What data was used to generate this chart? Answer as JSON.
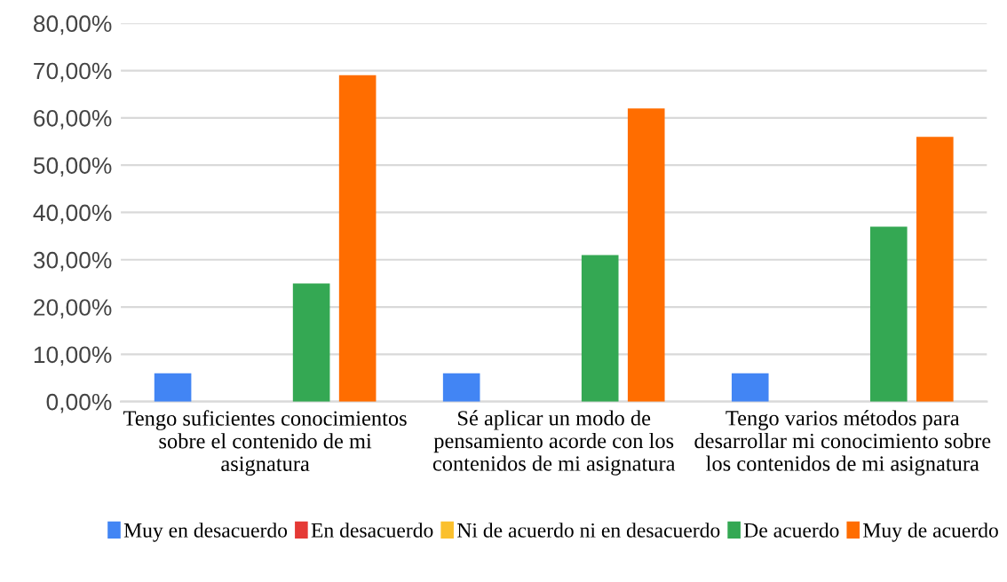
{
  "chart_data": {
    "type": "bar",
    "categories": [
      "Tengo suficientes conocimientos\nsobre el contenido de mi\nasignatura",
      "Sé aplicar un modo de\npensamiento acorde con los\ncontenidos de mi asignatura",
      "Tengo varios métodos para\ndesarrollar mi conocimiento sobre\nlos contenidos de mi asignatura"
    ],
    "series": [
      {
        "name": "Muy en desacuerdo",
        "color": "#4285f4",
        "values": [
          6,
          6,
          6
        ]
      },
      {
        "name": "En desacuerdo",
        "color": "#e53935",
        "values": [
          0,
          0,
          0
        ]
      },
      {
        "name": "Ni de acuerdo ni en desacuerdo",
        "color": "#fbc02d",
        "values": [
          0,
          0,
          0
        ]
      },
      {
        "name": "De acuerdo",
        "color": "#34a853",
        "values": [
          25,
          31,
          37
        ]
      },
      {
        "name": "Muy de acuerdo",
        "color": "#ff6d00",
        "values": [
          69,
          62,
          56
        ]
      }
    ],
    "ylim": [
      0,
      80
    ],
    "yticks": [
      {
        "value": 0,
        "label": "0,00%"
      },
      {
        "value": 10,
        "label": "10,00%"
      },
      {
        "value": 20,
        "label": "20,00%"
      },
      {
        "value": 30,
        "label": "30,00%"
      },
      {
        "value": 40,
        "label": "40,00%"
      },
      {
        "value": 50,
        "label": "50,00%"
      },
      {
        "value": 60,
        "label": "60,00%"
      },
      {
        "value": 70,
        "label": "70,00%"
      },
      {
        "value": 80,
        "label": "80,00%"
      }
    ],
    "grid": "y",
    "legend": "bottom"
  }
}
